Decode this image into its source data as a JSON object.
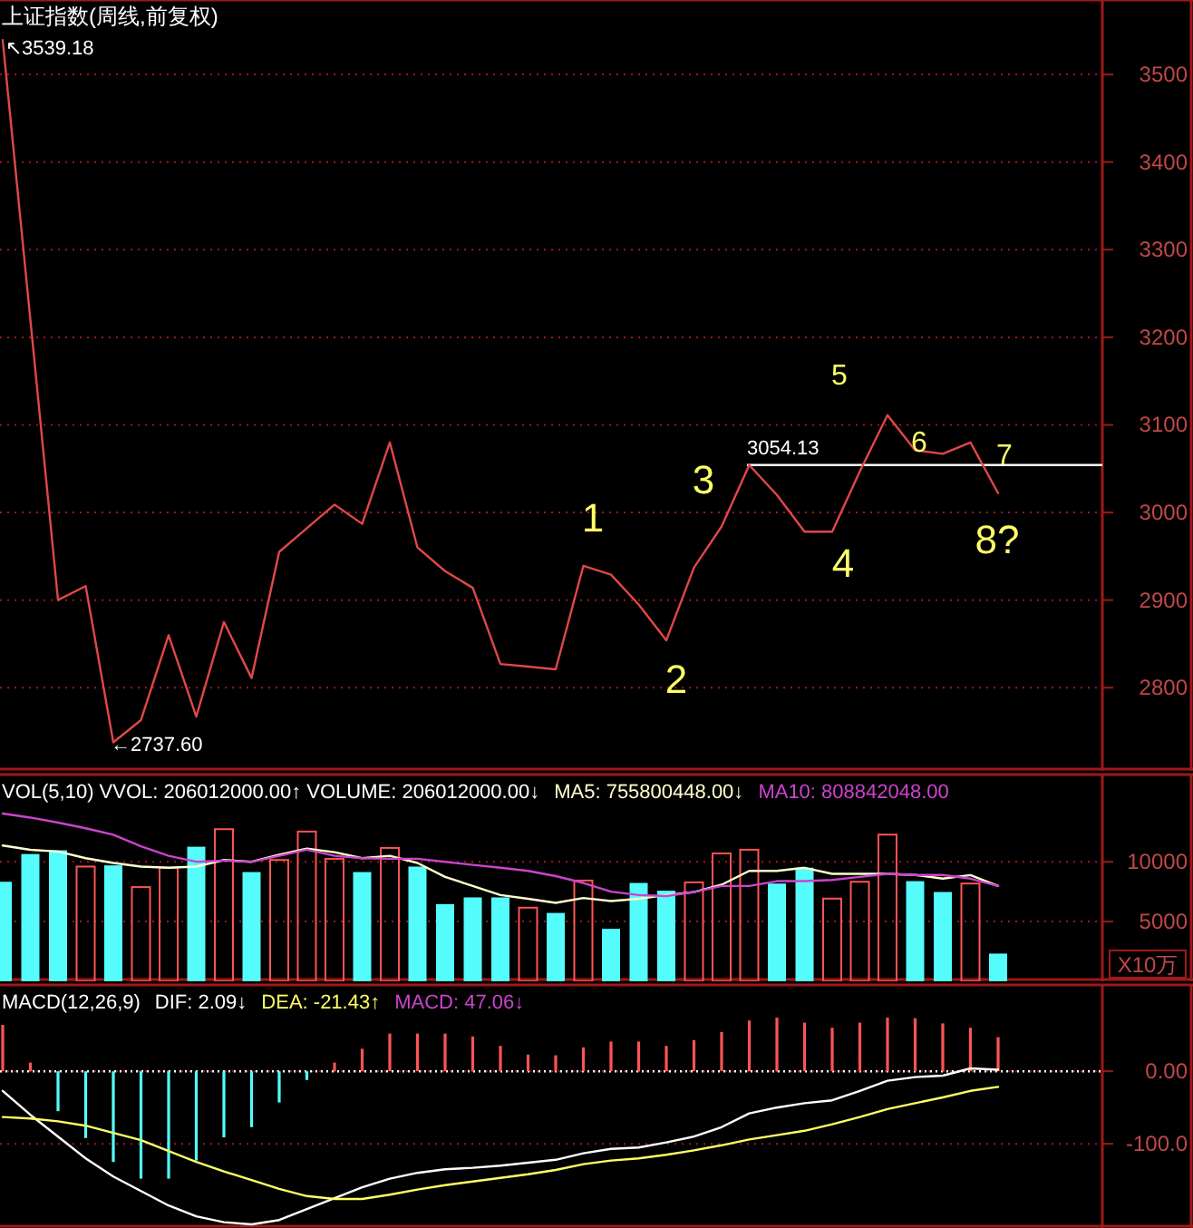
{
  "chart_data": [
    {
      "type": "line",
      "title": "上证指数(周线,前复权)",
      "categories": [
        null,
        null,
        null,
        null,
        null,
        null,
        null,
        null,
        null,
        null,
        null,
        null,
        null,
        null,
        null,
        null,
        null,
        null,
        null,
        null,
        null,
        null,
        null,
        null,
        null,
        null,
        null,
        null,
        null,
        null,
        null,
        null,
        null,
        null,
        null,
        null,
        null
      ],
      "series": [
        {
          "color": "#e04848",
          "values": [
            3539.18,
            3220,
            2900,
            2916,
            2737.6,
            2763,
            2860,
            2767,
            2875,
            2811,
            2955,
            2982,
            3009,
            2987,
            3080,
            2960,
            2933,
            2914,
            2827,
            2824,
            2821,
            2939,
            2929,
            2895,
            2854,
            2937,
            2984,
            3054.13,
            3020,
            2978,
            2978,
            3047,
            3111,
            3071,
            3067,
            3080,
            3022
          ]
        }
      ],
      "ylim": [
        2705,
        3585
      ],
      "yticks": [
        2800,
        2900,
        3000,
        3100,
        3200,
        3300,
        3400,
        3500
      ],
      "grid": "y",
      "ref_lines": [
        {
          "axis": "y",
          "value": 3054.13,
          "label": "3054.13",
          "color": "#ffffff"
        }
      ],
      "annotations": [
        "↖3539.18",
        "←2737.60",
        "1",
        "2",
        "3",
        "4",
        "5",
        "6",
        "7",
        "8?"
      ]
    },
    {
      "type": "bar",
      "title": "VOL(5,10) VVOL: 206012000.00↑ VOLUME: 206012000.00↓",
      "ylabel": "X10万",
      "categories": [
        null,
        null,
        null,
        null,
        null,
        null,
        null,
        null,
        null,
        null,
        null,
        null,
        null,
        null,
        null,
        null,
        null,
        null,
        null,
        null,
        null,
        null,
        null,
        null,
        null,
        null,
        null,
        null,
        null,
        null,
        null,
        null,
        null,
        null,
        null,
        null,
        null
      ],
      "series": [
        {
          "colors": [
            "#54fcfc",
            "#54fcfc",
            "#54fcfc",
            "#ff5454",
            "#54fcfc",
            "#ff5454",
            "#ff5454",
            "#54fcfc",
            "#ff5454",
            "#54fcfc",
            "#ff5454",
            "#ff5454",
            "#ff5454",
            "#54fcfc",
            "#ff5454",
            "#54fcfc",
            "#54fcfc",
            "#54fcfc",
            "#54fcfc",
            "#ff5454",
            "#54fcfc",
            "#ff5454",
            "#54fcfc",
            "#54fcfc",
            "#54fcfc",
            "#ff5454",
            "#ff5454",
            "#ff5454",
            "#54fcfc",
            "#54fcfc",
            "#ff5454",
            "#ff5454",
            "#ff5454",
            "#54fcfc",
            "#54fcfc",
            "#ff5454",
            "#54fcfc"
          ],
          "values": [
            8330,
            10650,
            10960,
            9600,
            9700,
            7880,
            9500,
            11260,
            12730,
            9140,
            10150,
            12530,
            10250,
            9140,
            11160,
            9600,
            6460,
            7020,
            7020,
            6160,
            5720,
            8430,
            4390,
            8230,
            7580,
            8280,
            10700,
            11010,
            8180,
            9500,
            6920,
            8330,
            12270,
            8380,
            7470,
            8180,
            2320
          ]
        },
        {
          "type": "line",
          "name": "MA5: 755800448.00↓",
          "color": "#ffffcc",
          "values": [
            11360,
            11000,
            10860,
            10300,
            9900,
            9600,
            9500,
            9600,
            10150,
            10000,
            10600,
            11100,
            10800,
            10300,
            10500,
            9900,
            8740,
            7980,
            7220,
            6900,
            6560,
            6970,
            6710,
            6900,
            7220,
            7470,
            8080,
            9240,
            9240,
            9500,
            8990,
            8990,
            8990,
            8900,
            8590,
            8890,
            7980
          ]
        },
        {
          "type": "line",
          "name": "MA10: 808842048.00",
          "color": "#cc44cc",
          "values": [
            14040,
            13700,
            13280,
            12800,
            12270,
            11300,
            10500,
            10000,
            10100,
            9990,
            10500,
            11010,
            10500,
            10300,
            10250,
            10250,
            10000,
            9740,
            9500,
            9240,
            8800,
            8230,
            7500,
            7220,
            7130,
            7470,
            7980,
            7980,
            8380,
            8380,
            8480,
            8740,
            8990,
            8900,
            8900,
            8590,
            7980
          ]
        }
      ],
      "ylim": [
        0,
        17300
      ],
      "yticks": [
        5000,
        10000
      ],
      "grid": "y",
      "legend": "top"
    },
    {
      "type": "bar",
      "title": "MACD(12,26,9)",
      "categories": [
        null,
        null,
        null,
        null,
        null,
        null,
        null,
        null,
        null,
        null,
        null,
        null,
        null,
        null,
        null,
        null,
        null,
        null,
        null,
        null,
        null,
        null,
        null,
        null,
        null,
        null,
        null,
        null,
        null,
        null,
        null,
        null,
        null,
        null,
        null,
        null,
        null
      ],
      "series": [
        {
          "type": "line",
          "name": "DIF: 2.09↓",
          "color": "#ffffff",
          "values": [
            -27,
            -60,
            -90,
            -120,
            -145,
            -165,
            -185,
            -200,
            -208,
            -211,
            -205,
            -190,
            -175,
            -160,
            -148,
            -140,
            -135,
            -133,
            -130,
            -126,
            -122,
            -113,
            -107,
            -105,
            -98,
            -90,
            -77,
            -58,
            -50,
            -44,
            -40,
            -27,
            -13,
            -8,
            -6,
            4,
            2.09
          ]
        },
        {
          "type": "line",
          "name": "DEA: -21.43↑",
          "color": "#ffff66",
          "values": [
            -63,
            -65,
            -69,
            -75,
            -85,
            -95,
            -110,
            -125,
            -138,
            -150,
            -162,
            -172,
            -176,
            -176,
            -170,
            -163,
            -157,
            -152,
            -147,
            -142,
            -136,
            -128,
            -123,
            -120,
            -115,
            -109,
            -102,
            -94,
            -88,
            -82,
            -73,
            -63,
            -52,
            -44,
            -36,
            -27,
            -21.43
          ]
        },
        {
          "name": "MACD: 47.06↓",
          "color": "#cc44cc",
          "colors": [
            "#ff5454",
            "#ff5454",
            "#54fcfc",
            "#54fcfc",
            "#54fcfc",
            "#54fcfc",
            "#54fcfc",
            "#54fcfc",
            "#54fcfc",
            "#54fcfc",
            "#54fcfc",
            "#54fcfc",
            "#ff5454",
            "#ff5454",
            "#ff5454",
            "#ff5454",
            "#ff5454",
            "#ff5454",
            "#ff5454",
            "#ff5454",
            "#ff5454",
            "#ff5454",
            "#ff5454",
            "#ff5454",
            "#ff5454",
            "#ff5454",
            "#ff5454",
            "#ff5454",
            "#ff5454",
            "#ff5454",
            "#ff5454",
            "#ff5454",
            "#ff5454",
            "#ff5454",
            "#ff5454",
            "#ff5454",
            "#ff5454"
          ],
          "values": [
            64,
            12,
            -55,
            -92,
            -125,
            -148,
            -148,
            -123,
            -91,
            -77,
            -43,
            -12,
            12,
            31,
            52,
            52,
            52,
            48,
            35,
            23,
            22,
            33,
            41,
            41,
            35,
            43,
            54,
            70,
            74,
            67,
            60,
            67,
            74,
            73,
            66,
            60,
            47.06
          ]
        }
      ],
      "ylim": [
        -216,
        119
      ],
      "yticks": [
        {
          "value": 0,
          "label": "0.00"
        },
        {
          "value": -100,
          "label": "-100.0"
        }
      ],
      "grid": "y",
      "ref_lines": [
        {
          "axis": "y",
          "value": 0,
          "color": "#ffffff",
          "line_style": "dotted"
        }
      ],
      "legend": "top"
    }
  ]
}
